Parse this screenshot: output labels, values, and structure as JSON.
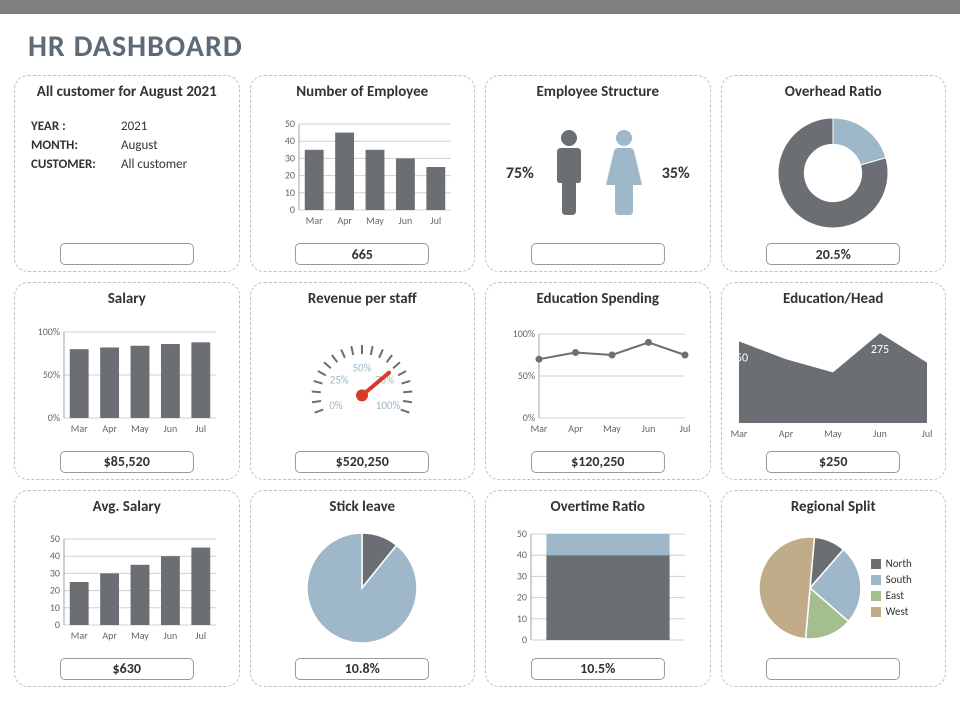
{
  "colors": {
    "primary": "#6b6e72",
    "accent": "#9fb8c9",
    "grid": "#d0d0d0",
    "axis": "#a0a0a0",
    "text": "#333333",
    "topbar": "#7f7f7f",
    "green": "#a5be8d",
    "tan": "#c0ac88",
    "needle": "#d63a2a"
  },
  "header": {
    "title": "HR DASHBOARD"
  },
  "cards": {
    "summary": {
      "title": "All customer for August 2021",
      "filters": {
        "year_label": "YEAR :",
        "year_value": "2021",
        "month_label": "MONTH:",
        "month_value": "August",
        "customer_label": "CUSTOMER:",
        "customer_value": "All customer"
      },
      "pill": ""
    },
    "employees": {
      "title": "Number of Employee",
      "type": "bar",
      "categories": [
        "Mar",
        "Apr",
        "May",
        "Jun",
        "Jul"
      ],
      "values": [
        35,
        45,
        35,
        30,
        25
      ],
      "yticks": [
        0,
        10,
        20,
        30,
        40,
        50
      ],
      "bar_color": "#6b6e72",
      "pill": "665"
    },
    "structure": {
      "title": "Employee Structure",
      "male_pct": "75%",
      "female_pct": "35%",
      "male_color": "#6b6e72",
      "female_color": "#9fb8c9",
      "pill": ""
    },
    "overhead": {
      "title": "Overhead Ratio",
      "type": "donut",
      "value": 20.5,
      "ring_color": "#6b6e72",
      "value_color": "#9fb8c9",
      "hole_color": "#ffffff",
      "pill": "20.5%"
    },
    "salary": {
      "title": "Salary",
      "type": "bar",
      "categories": [
        "Mar",
        "Apr",
        "May",
        "Jun",
        "Jul"
      ],
      "values": [
        80,
        82,
        84,
        86,
        88
      ],
      "yticks": [
        0,
        50,
        100
      ],
      "ytick_labels": [
        "0%",
        "50%",
        "100%"
      ],
      "bar_color": "#6b6e72",
      "pill": "$85,520"
    },
    "revenue": {
      "title": "Revenue per staff",
      "type": "gauge",
      "tick_labels": [
        "0%",
        "25%",
        "50%",
        "75%",
        "100%"
      ],
      "needle_angle_deg": 50,
      "needle_color": "#d63a2a",
      "tick_color": "#6b6e72",
      "label_color": "#9fb8c9",
      "pill": "$520,250"
    },
    "edu_spend": {
      "title": "Education Spending",
      "type": "line",
      "categories": [
        "Mar",
        "Apr",
        "May",
        "Jun",
        "Jul"
      ],
      "values": [
        70,
        78,
        75,
        90,
        75
      ],
      "yticks": [
        0,
        50,
        100
      ],
      "ytick_labels": [
        "0%",
        "50%",
        "100%"
      ],
      "line_color": "#6b6e72",
      "pill": "$120,250"
    },
    "edu_head": {
      "title": "Education/Head",
      "type": "area",
      "categories": [
        "Mar",
        "Apr",
        "May",
        "Jun",
        "Jul"
      ],
      "values": [
        250,
        195,
        155,
        275,
        185
      ],
      "ymax": 300,
      "fill_color": "#6b6e72",
      "pill": "$250"
    },
    "avg_salary": {
      "title": "Avg. Salary",
      "type": "bar",
      "categories": [
        "Mar",
        "Apr",
        "May",
        "Jun",
        "Jul"
      ],
      "values": [
        25,
        30,
        35,
        40,
        45
      ],
      "yticks": [
        0,
        10,
        20,
        30,
        40,
        50
      ],
      "bar_color": "#6b6e72",
      "pill": "$630"
    },
    "sick_leave": {
      "title": "Stick leave",
      "type": "pie",
      "slices": [
        {
          "value": 10.8,
          "color": "#6b6e72"
        },
        {
          "value": 89.2,
          "color": "#9fb8c9"
        }
      ],
      "start_angle_deg": -90,
      "pill": "10.8%"
    },
    "overtime": {
      "title": "Overtime Ratio",
      "type": "stackedbar",
      "upper_value": 10,
      "lower_value": 40,
      "upper_color": "#9fb8c9",
      "lower_color": "#6b6e72",
      "yticks": [
        0,
        10,
        20,
        30,
        40,
        50
      ],
      "pill": "10.5%"
    },
    "regional": {
      "title": "Regional Split",
      "type": "pie",
      "slices": [
        {
          "label": "North",
          "value": 10,
          "color": "#6b6e72"
        },
        {
          "label": "South",
          "value": 25,
          "color": "#9fb8c9"
        },
        {
          "label": "East",
          "value": 15,
          "color": "#a5be8d"
        },
        {
          "label": "West",
          "value": 50,
          "color": "#c0ac88"
        }
      ],
      "start_angle_deg": -85,
      "legend_prefix": "",
      "pill": ""
    }
  }
}
